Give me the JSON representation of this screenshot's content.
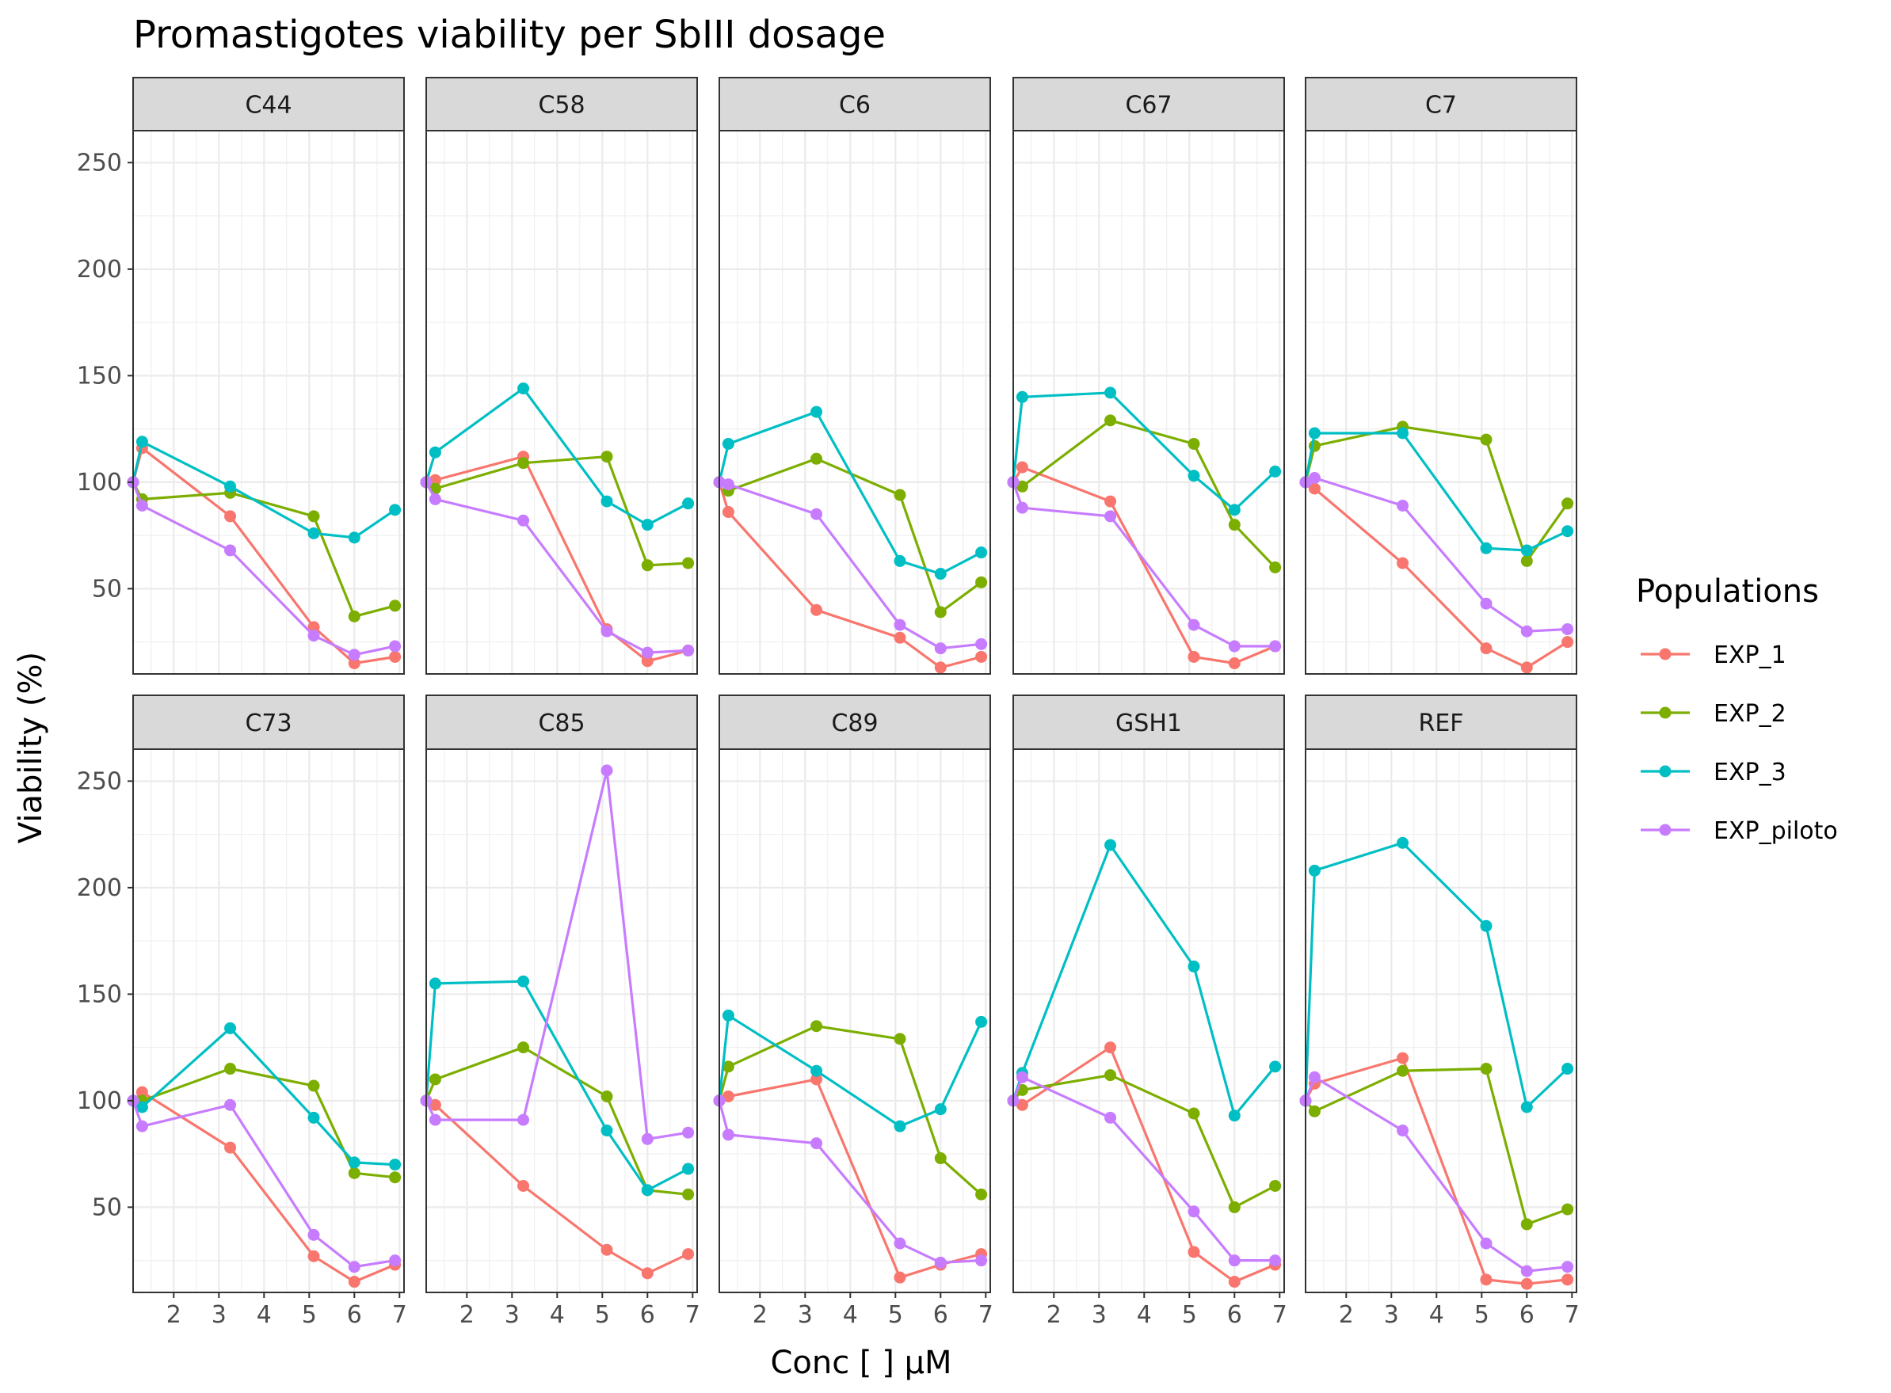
{
  "chart_data": {
    "type": "line",
    "title": "Promastigotes viability per SbIII dosage",
    "xlabel": "Conc [   ] µM",
    "ylabel": "Viability (%)",
    "xlim": [
      1.1,
      7.1
    ],
    "ylim": [
      10,
      265
    ],
    "x_ticks": [
      2,
      3,
      4,
      5,
      6,
      7
    ],
    "y_ticks": [
      50,
      100,
      150,
      200,
      250
    ],
    "grid": true,
    "legend": {
      "title": "Populations",
      "position": "right"
    },
    "x": [
      1.1,
      1.3,
      3.25,
      5.1,
      6.0,
      6.9
    ],
    "series_names": [
      "EXP_1",
      "EXP_2",
      "EXP_3",
      "EXP_piloto"
    ],
    "colors": {
      "EXP_1": "#F8766D",
      "EXP_2": "#7CAE00",
      "EXP_3": "#00BFC4",
      "EXP_piloto": "#C77CFF"
    },
    "panels": [
      {
        "name": "C44",
        "series": [
          {
            "name": "EXP_1",
            "values": [
              100,
              116,
              84,
              32,
              15,
              18
            ]
          },
          {
            "name": "EXP_2",
            "values": [
              100,
              92,
              95,
              84,
              37,
              42
            ]
          },
          {
            "name": "EXP_3",
            "values": [
              100,
              119,
              98,
              76,
              74,
              87
            ]
          },
          {
            "name": "EXP_piloto",
            "values": [
              100,
              89,
              68,
              28,
              19,
              23
            ]
          }
        ]
      },
      {
        "name": "C58",
        "series": [
          {
            "name": "EXP_1",
            "values": [
              100,
              101,
              112,
              31,
              16,
              21
            ]
          },
          {
            "name": "EXP_2",
            "values": [
              100,
              97,
              109,
              112,
              61,
              62
            ]
          },
          {
            "name": "EXP_3",
            "values": [
              100,
              114,
              144,
              91,
              80,
              90
            ]
          },
          {
            "name": "EXP_piloto",
            "values": [
              100,
              92,
              82,
              30,
              20,
              21
            ]
          }
        ]
      },
      {
        "name": "C6",
        "series": [
          {
            "name": "EXP_1",
            "values": [
              100,
              86,
              40,
              27,
              13,
              18
            ]
          },
          {
            "name": "EXP_2",
            "values": [
              100,
              96,
              111,
              94,
              39,
              53
            ]
          },
          {
            "name": "EXP_3",
            "values": [
              100,
              118,
              133,
              63,
              57,
              67
            ]
          },
          {
            "name": "EXP_piloto",
            "values": [
              100,
              99,
              85,
              33,
              22,
              24
            ]
          }
        ]
      },
      {
        "name": "C67",
        "series": [
          {
            "name": "EXP_1",
            "values": [
              100,
              107,
              91,
              18,
              15,
              23
            ]
          },
          {
            "name": "EXP_2",
            "values": [
              100,
              98,
              129,
              118,
              80,
              60
            ]
          },
          {
            "name": "EXP_3",
            "values": [
              100,
              140,
              142,
              103,
              87,
              105
            ]
          },
          {
            "name": "EXP_piloto",
            "values": [
              100,
              88,
              84,
              33,
              23,
              23
            ]
          }
        ]
      },
      {
        "name": "C7",
        "series": [
          {
            "name": "EXP_1",
            "values": [
              100,
              97,
              62,
              22,
              13,
              25
            ]
          },
          {
            "name": "EXP_2",
            "values": [
              100,
              117,
              126,
              120,
              63,
              90
            ]
          },
          {
            "name": "EXP_3",
            "values": [
              100,
              123,
              123,
              69,
              68,
              77
            ]
          },
          {
            "name": "EXP_piloto",
            "values": [
              100,
              102,
              89,
              43,
              30,
              31
            ]
          }
        ]
      },
      {
        "name": "C73",
        "series": [
          {
            "name": "EXP_1",
            "values": [
              100,
              104,
              78,
              27,
              15,
              23
            ]
          },
          {
            "name": "EXP_2",
            "values": [
              100,
              100,
              115,
              107,
              66,
              64
            ]
          },
          {
            "name": "EXP_3",
            "values": [
              100,
              97,
              134,
              92,
              71,
              70
            ]
          },
          {
            "name": "EXP_piloto",
            "values": [
              100,
              88,
              98,
              37,
              22,
              25
            ]
          }
        ]
      },
      {
        "name": "C85",
        "series": [
          {
            "name": "EXP_1",
            "values": [
              100,
              98,
              60,
              30,
              19,
              28
            ]
          },
          {
            "name": "EXP_2",
            "values": [
              100,
              110,
              125,
              102,
              58,
              56
            ]
          },
          {
            "name": "EXP_3",
            "values": [
              100,
              155,
              156,
              86,
              58,
              68
            ]
          },
          {
            "name": "EXP_piloto",
            "values": [
              100,
              91,
              91,
              255,
              82,
              85
            ]
          }
        ]
      },
      {
        "name": "C89",
        "series": [
          {
            "name": "EXP_1",
            "values": [
              100,
              102,
              110,
              17,
              23,
              28
            ]
          },
          {
            "name": "EXP_2",
            "values": [
              100,
              116,
              135,
              129,
              73,
              56
            ]
          },
          {
            "name": "EXP_3",
            "values": [
              100,
              140,
              114,
              88,
              96,
              137
            ]
          },
          {
            "name": "EXP_piloto",
            "values": [
              100,
              84,
              80,
              33,
              24,
              25
            ]
          }
        ]
      },
      {
        "name": "GSH1",
        "series": [
          {
            "name": "EXP_1",
            "values": [
              100,
              98,
              125,
              29,
              15,
              23
            ]
          },
          {
            "name": "EXP_2",
            "values": [
              100,
              105,
              112,
              94,
              50,
              60
            ]
          },
          {
            "name": "EXP_3",
            "values": [
              100,
              113,
              220,
              163,
              93,
              116
            ]
          },
          {
            "name": "EXP_piloto",
            "values": [
              100,
              111,
              92,
              48,
              25,
              25
            ]
          }
        ]
      },
      {
        "name": "REF",
        "series": [
          {
            "name": "EXP_1",
            "values": [
              100,
              108,
              120,
              16,
              14,
              16
            ]
          },
          {
            "name": "EXP_2",
            "values": [
              100,
              95,
              114,
              115,
              42,
              49
            ]
          },
          {
            "name": "EXP_3",
            "values": [
              100,
              208,
              221,
              182,
              97,
              115
            ]
          },
          {
            "name": "EXP_piloto",
            "values": [
              100,
              111,
              86,
              33,
              20,
              22
            ]
          }
        ]
      }
    ]
  }
}
